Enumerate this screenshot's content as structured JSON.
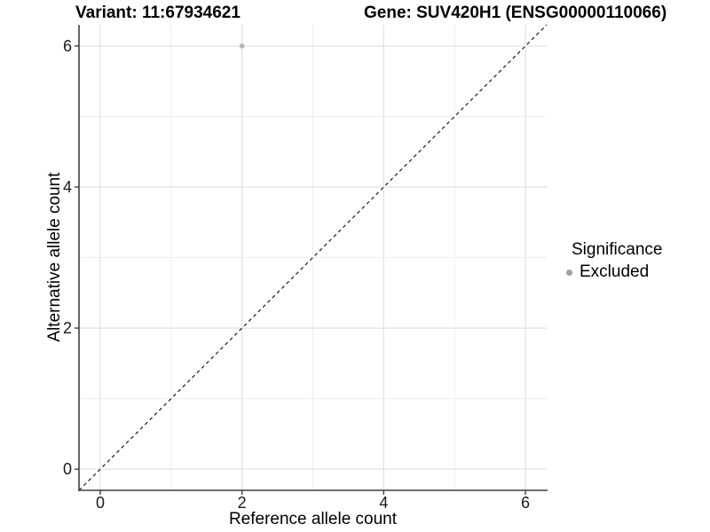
{
  "header": {
    "variant_title": "Variant: 11:67934621",
    "gene_title": "Gene: SUV420H1 (ENSG00000110066)"
  },
  "chart_data": {
    "type": "scatter",
    "xlabel": "Reference allele count",
    "ylabel": "Alternative allele count",
    "xlim": [
      -0.3,
      6.3
    ],
    "ylim": [
      -0.3,
      6.3
    ],
    "x_ticks": [
      0,
      2,
      4,
      6
    ],
    "y_ticks": [
      0,
      2,
      4,
      6
    ],
    "x_minor_ticks": [
      1,
      3,
      5
    ],
    "y_minor_ticks": [
      1,
      3,
      5
    ],
    "grid": "on",
    "points": [
      {
        "x": 2,
        "y": 6,
        "series": "Excluded"
      }
    ],
    "reference_line": {
      "kind": "identity",
      "slope": 1,
      "intercept": 0,
      "style": "dashed"
    },
    "legend": {
      "title": "Significance",
      "position": "right",
      "items": [
        {
          "label": "Excluded",
          "color": "#a0a0a0"
        }
      ]
    },
    "colors": {
      "point": "#b4b4b4",
      "grid_major": "#e3e3e3",
      "grid_minor": "#eeeeee",
      "axis": "#3f3f3f",
      "tick_label": "#1a1a1a",
      "reference_line": "#1a1a1a"
    }
  }
}
